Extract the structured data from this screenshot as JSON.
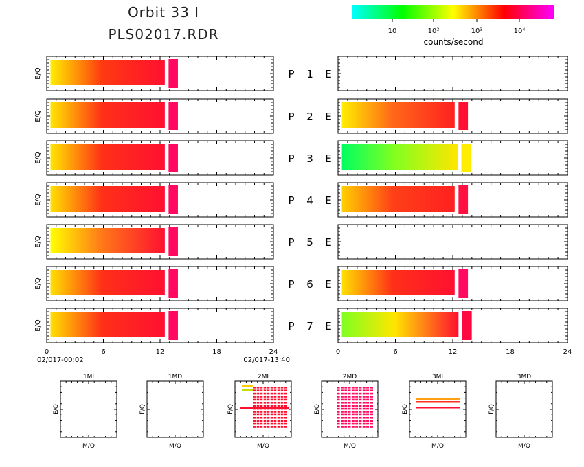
{
  "header": {
    "title": "Orbit 33 I",
    "subtitle": "PLS02017.RDR"
  },
  "colorbar": {
    "tick_labels": [
      "10",
      "10²",
      "10³",
      "10⁴"
    ],
    "label": "counts/second",
    "colors": [
      "#00ffff",
      "#00ff00",
      "#ffff00",
      "#ff0000",
      "#ff00ff"
    ]
  },
  "chart_data": {
    "type": "heatmap",
    "panels": [
      {
        "label": "P",
        "num": "1",
        "end": "E",
        "left": {
          "start": "#ffee00",
          "mid": "#ff3a10",
          "end": "#ff1030",
          "cut": 12.5,
          "cap": "#ff0a60"
        },
        "right": null
      },
      {
        "label": "P",
        "num": "2",
        "end": "E",
        "left": {
          "start": "#ffe600",
          "mid": "#ff3018",
          "end": "#ff1030",
          "cut": 12.5,
          "cap": "#ff0a60"
        },
        "right": {
          "start": "#ffee00",
          "mid": "#ff6818",
          "end": "#ff2020",
          "cut": 12.2,
          "cap": "#ff1030"
        }
      },
      {
        "label": "P",
        "num": "3",
        "end": "E",
        "left": {
          "start": "#ffe600",
          "mid": "#ff3018",
          "end": "#ff1030",
          "cut": 12.5,
          "cap": "#ff0a60"
        },
        "right": {
          "start": "#00ff60",
          "mid": "#80ff20",
          "end": "#ffe600",
          "cut": 12.5,
          "cap": "#ffee00"
        }
      },
      {
        "label": "P",
        "num": "4",
        "end": "E",
        "left": {
          "start": "#ffe000",
          "mid": "#ff3018",
          "end": "#ff1030",
          "cut": 12.5,
          "cap": "#ff0a60"
        },
        "right": {
          "start": "#ffd000",
          "mid": "#ff4018",
          "end": "#ff2020",
          "cut": 12.2,
          "cap": "#ff1040"
        }
      },
      {
        "label": "P",
        "num": "5",
        "end": "E",
        "left": {
          "start": "#ffff00",
          "mid": "#ff7818",
          "end": "#ff1030",
          "cut": 12.5,
          "cap": "#ff0a60"
        },
        "right": null
      },
      {
        "label": "P",
        "num": "6",
        "end": "E",
        "left": {
          "start": "#ffe000",
          "mid": "#ff3018",
          "end": "#ff1030",
          "cut": 12.5,
          "cap": "#ff0a60"
        },
        "right": {
          "start": "#ffe000",
          "mid": "#ff3018",
          "end": "#ff1030",
          "cut": 12.2,
          "cap": "#ff0a60"
        }
      },
      {
        "label": "P",
        "num": "7",
        "end": "E",
        "left": {
          "start": "#ffe000",
          "mid": "#ff3018",
          "end": "#ff1030",
          "cut": 12.5,
          "cap": "#ff0a60"
        },
        "right": {
          "start": "#80ff20",
          "mid": "#ffe600",
          "end": "#ff1030",
          "cut": 12.6,
          "cap": "#ff0a40"
        }
      }
    ],
    "ylabel": "E/Q",
    "x_ticks": [
      "0",
      "6",
      "12",
      "18",
      "24"
    ],
    "xlim": [
      0,
      24
    ],
    "time_start": "02/017-00:02",
    "time_end": "02/017-13:40",
    "small_panels": [
      {
        "title": "1MI",
        "content": "empty"
      },
      {
        "title": "1MD",
        "content": "empty"
      },
      {
        "title": "2MI",
        "content": "grid-red"
      },
      {
        "title": "2MD",
        "content": "grid-magenta"
      },
      {
        "title": "3MI",
        "content": "three-lines"
      },
      {
        "title": "3MD",
        "content": "empty"
      }
    ],
    "small_xlabel": "M/Q",
    "small_ylabel": "E/Q"
  }
}
